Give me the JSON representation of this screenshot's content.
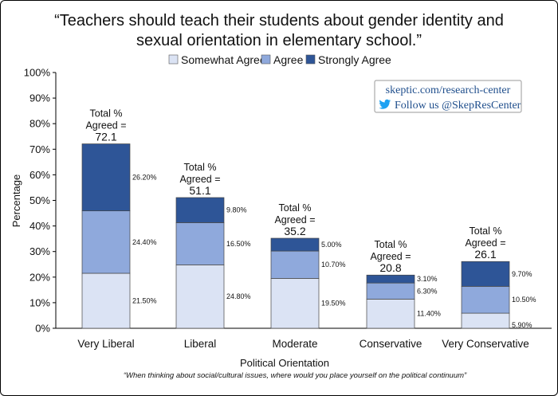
{
  "chart_data": {
    "type": "bar",
    "stacked": true,
    "title_line1": "“Teachers should teach their students about gender identity and",
    "title_line2": "sexual orientation in elementary school.”",
    "xlabel": "Political Orientation",
    "ylabel": "Percentage",
    "footnote": "“When thinking about social/cultural issues, where would you place yourself on the political continuum”",
    "ylim": [
      0,
      100
    ],
    "yticks": [
      "0%",
      "10%",
      "20%",
      "30%",
      "40%",
      "50%",
      "60%",
      "70%",
      "80%",
      "90%",
      "100%"
    ],
    "grid": false,
    "legend_position": "top",
    "categories": [
      "Very Liberal",
      "Liberal",
      "Moderate",
      "Conservative",
      "Very Conservative"
    ],
    "series": [
      {
        "name": "Somewhat Agree",
        "color": "#dbe3f4",
        "values": [
          21.5,
          24.8,
          19.5,
          11.4,
          5.9
        ],
        "labels": [
          "21.50%",
          "24.80%",
          "19.50%",
          "11.40%",
          "5.90%"
        ]
      },
      {
        "name": "Agree",
        "color": "#8fa9dc",
        "values": [
          24.4,
          16.5,
          10.7,
          6.3,
          10.5
        ],
        "labels": [
          "24.40%",
          "16.50%",
          "10.70%",
          "6.30%",
          "10.50%"
        ]
      },
      {
        "name": "Strongly Agree",
        "color": "#2e5597",
        "values": [
          26.2,
          9.8,
          5.0,
          3.1,
          9.7
        ],
        "labels": [
          "26.20%",
          "9.80%",
          "5.00%",
          "3.10%",
          "9.70%"
        ]
      }
    ],
    "totals": {
      "line1": "Total %",
      "line2": "Agreed =",
      "values": [
        "72.1",
        "51.1",
        "35.2",
        "20.8",
        "26.1"
      ]
    }
  },
  "source_box": {
    "link": "skeptic.com/research-center",
    "follow": "Follow us @SkepResCenter",
    "icon": "twitter-bird-icon",
    "icon_color": "#1da1f2"
  }
}
